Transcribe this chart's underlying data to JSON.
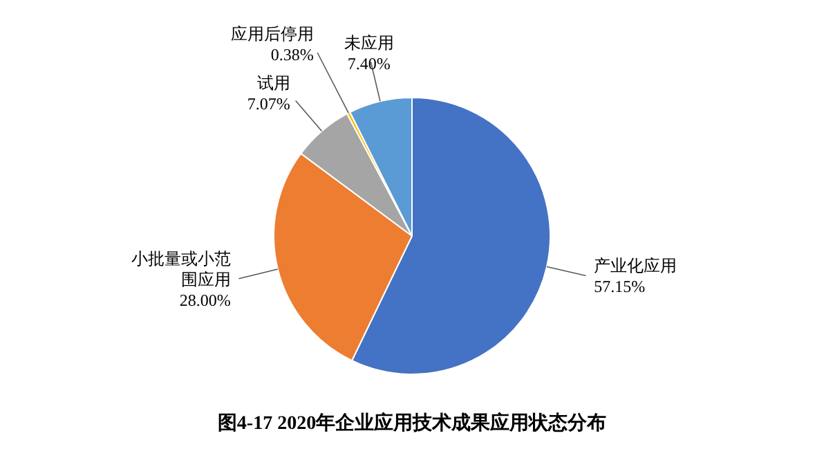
{
  "chart_data": {
    "type": "pie",
    "title": "图4-17  2020年企业应用技术成果应用状态分布",
    "categories": [
      "产业化应用",
      "小批量或小范围应用",
      "试用",
      "应用后停用",
      "未应用"
    ],
    "values": [
      57.15,
      28.0,
      7.07,
      0.38,
      7.4
    ],
    "colors": [
      "#4472c4",
      "#ed7d31",
      "#a5a5a5",
      "#ffc000",
      "#5b9bd5"
    ],
    "value_labels": [
      "57.15%",
      "28.00%",
      "7.07%",
      "0.38%",
      "7.40%"
    ],
    "legend": false
  }
}
